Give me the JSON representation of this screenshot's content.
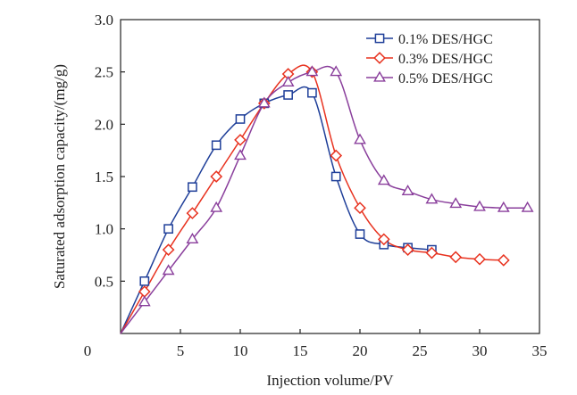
{
  "chart_data": {
    "type": "line",
    "title": "",
    "xlabel": "Injection volume/PV",
    "ylabel": "Saturated adsorption capacity/(mg/g)",
    "xlim": [
      0,
      35
    ],
    "ylim": [
      0,
      3.0
    ],
    "x_ticks": [
      "0",
      "5",
      "10",
      "15",
      "20",
      "25",
      "30",
      "35"
    ],
    "y_ticks": [
      "0.5",
      "1.0",
      "1.5",
      "2.0",
      "2.5",
      "3.0"
    ],
    "grid": false,
    "legend_position": "top-right",
    "series": [
      {
        "name": "0.1% DES/HGC",
        "color": "#1f3f99",
        "marker": "square",
        "x": [
          2,
          4,
          6,
          8,
          10,
          12,
          14,
          16,
          18,
          20,
          22,
          24,
          26
        ],
        "y": [
          0.5,
          1.0,
          1.4,
          1.8,
          2.05,
          2.2,
          2.28,
          2.3,
          1.5,
          0.95,
          0.85,
          0.82,
          0.8
        ]
      },
      {
        "name": "0.3% DES/HGC",
        "color": "#e8321f",
        "marker": "diamond",
        "x": [
          2,
          4,
          6,
          8,
          10,
          12,
          14,
          16,
          18,
          20,
          22,
          24,
          26,
          28,
          30,
          32
        ],
        "y": [
          0.4,
          0.8,
          1.15,
          1.5,
          1.85,
          2.2,
          2.48,
          2.5,
          1.7,
          1.2,
          0.9,
          0.8,
          0.77,
          0.73,
          0.71,
          0.7
        ]
      },
      {
        "name": "0.5% DES/HGC",
        "color": "#8a3f9c",
        "marker": "triangle",
        "x": [
          2,
          4,
          6,
          8,
          10,
          12,
          14,
          16,
          18,
          20,
          22,
          24,
          26,
          28,
          30,
          32,
          34
        ],
        "y": [
          0.3,
          0.6,
          0.9,
          1.2,
          1.7,
          2.2,
          2.4,
          2.5,
          2.5,
          1.85,
          1.46,
          1.36,
          1.28,
          1.24,
          1.21,
          1.2,
          1.2
        ]
      }
    ]
  }
}
